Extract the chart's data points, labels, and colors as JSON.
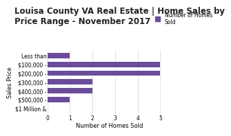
{
  "title": "Louisa County VA Real Estate | Home Sales by\nPrice Range - November 2017",
  "categories": [
    "$1 Million &",
    "$500,000 -",
    "$400,000 -",
    "$300,000 -",
    "$200,000 -",
    "$100,000 -",
    "Less than"
  ],
  "values": [
    0,
    1,
    2,
    2,
    5,
    5,
    1
  ],
  "bar_color": "#6b4c9a",
  "xlabel": "Number of Homes Sold",
  "ylabel": "Sales Price",
  "xlim": [
    0,
    5.5
  ],
  "xticks": [
    0,
    1,
    2,
    3,
    4,
    5
  ],
  "legend_label": "Number of Homes\nSold",
  "bg_color": "#ffffff",
  "title_fontsize": 8.5,
  "axis_label_fontsize": 6,
  "tick_fontsize": 5.5,
  "legend_fontsize": 5.5
}
